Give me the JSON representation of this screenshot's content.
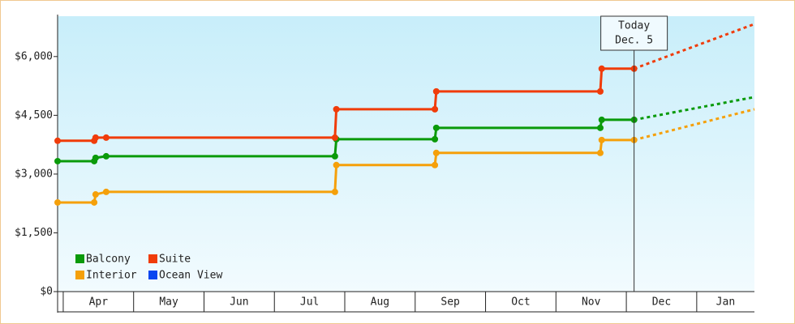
{
  "chart_data": {
    "type": "line",
    "xlim": [
      3.92,
      13.82
    ],
    "xticks": [
      {
        "value": 4.5,
        "label": "Apr"
      },
      {
        "value": 5.5,
        "label": "May"
      },
      {
        "value": 6.5,
        "label": "Jun"
      },
      {
        "value": 7.5,
        "label": "Jul"
      },
      {
        "value": 8.5,
        "label": "Aug"
      },
      {
        "value": 9.5,
        "label": "Sep"
      },
      {
        "value": 10.5,
        "label": "Oct"
      },
      {
        "value": 11.5,
        "label": "Nov"
      },
      {
        "value": 12.5,
        "label": "Dec"
      },
      {
        "value": 13.5,
        "label": "Jan"
      }
    ],
    "ylim": [
      0,
      7030
    ],
    "yticks": [
      {
        "value": 0,
        "label": "$0"
      },
      {
        "value": 1500,
        "label": "$1,500"
      },
      {
        "value": 3000,
        "label": "$3,000"
      },
      {
        "value": 4500,
        "label": "$4,500"
      },
      {
        "value": 6000,
        "label": "$6,000"
      }
    ],
    "annotation": {
      "lines": [
        "Today",
        "Dec. 5"
      ],
      "x": 12.11
    },
    "series": [
      {
        "name": "Balcony",
        "color": "#0a9a0a",
        "x": [
          3.92,
          4.44,
          4.46,
          4.61,
          7.86,
          7.88,
          9.28,
          9.3,
          11.63,
          11.65,
          12.11
        ],
        "values": [
          3330,
          3330,
          3415,
          3455,
          3455,
          3890,
          3890,
          4180,
          4180,
          4385,
          4385
        ],
        "forecast": {
          "x": [
            12.11,
            13.82
          ],
          "values": [
            4385,
            4965
          ]
        }
      },
      {
        "name": "Suite",
        "color": "#f03c0a",
        "x": [
          3.92,
          4.44,
          4.46,
          4.61,
          7.86,
          7.88,
          9.28,
          9.3,
          11.63,
          11.65,
          12.11
        ],
        "values": [
          3850,
          3850,
          3930,
          3930,
          3930,
          4655,
          4655,
          5110,
          5110,
          5690,
          5690
        ],
        "forecast": {
          "x": [
            12.11,
            13.82
          ],
          "values": [
            5690,
            6830
          ]
        }
      },
      {
        "name": "Interior",
        "color": "#f5a00a",
        "x": [
          3.92,
          4.44,
          4.46,
          4.61,
          7.86,
          7.88,
          9.28,
          9.3,
          11.63,
          11.65,
          12.11
        ],
        "values": [
          2275,
          2275,
          2480,
          2545,
          2545,
          3230,
          3230,
          3540,
          3540,
          3870,
          3870
        ],
        "forecast": {
          "x": [
            12.11,
            13.82
          ],
          "values": [
            3870,
            4655
          ]
        }
      },
      {
        "name": "Ocean View",
        "color": "#0a46f0",
        "x": [],
        "values": []
      }
    ]
  }
}
